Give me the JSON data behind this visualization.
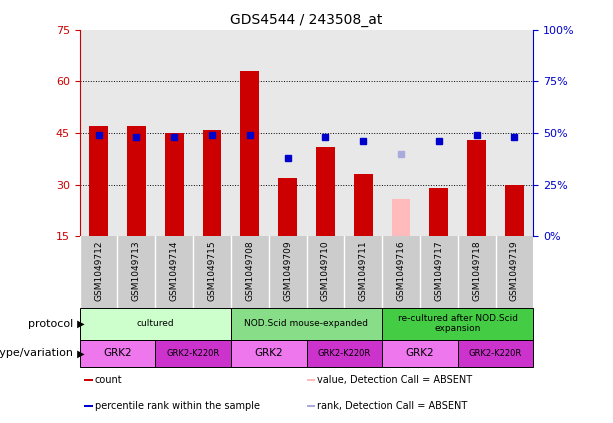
{
  "title": "GDS4544 / 243508_at",
  "samples": [
    "GSM1049712",
    "GSM1049713",
    "GSM1049714",
    "GSM1049715",
    "GSM1049708",
    "GSM1049709",
    "GSM1049710",
    "GSM1049711",
    "GSM1049716",
    "GSM1049717",
    "GSM1049718",
    "GSM1049719"
  ],
  "bar_values": [
    47,
    47,
    45,
    46,
    63,
    32,
    41,
    33,
    null,
    29,
    43,
    30
  ],
  "bar_color": "#cc0000",
  "absent_bar_color": "#ffbbbb",
  "absent_dot_color": "#aaaadd",
  "dot_color": "#0000cc",
  "absent_bar": [
    null,
    null,
    null,
    null,
    null,
    null,
    null,
    null,
    26,
    null,
    null,
    null
  ],
  "dot_values": [
    49,
    48,
    48,
    49,
    49,
    38,
    48,
    46,
    null,
    46,
    49,
    48
  ],
  "absent_dot": [
    null,
    null,
    null,
    null,
    null,
    null,
    null,
    null,
    40,
    null,
    null,
    null
  ],
  "ylim_left": [
    15,
    75
  ],
  "y_ticks_left": [
    15,
    30,
    45,
    60,
    75
  ],
  "y_ticks_right": [
    0,
    25,
    50,
    75,
    100
  ],
  "y_right_color": "#0000cc",
  "y_left_color": "#cc0000",
  "protocols": [
    {
      "label": "cultured",
      "start": 0,
      "end": 4,
      "color": "#ccffcc"
    },
    {
      "label": "NOD.Scid mouse-expanded",
      "start": 4,
      "end": 8,
      "color": "#88dd88"
    },
    {
      "label": "re-cultured after NOD.Scid\nexpansion",
      "start": 8,
      "end": 12,
      "color": "#44cc44"
    }
  ],
  "genotypes": [
    {
      "label": "GRK2",
      "start": 0,
      "end": 2,
      "color": "#ee77ee"
    },
    {
      "label": "GRK2-K220R",
      "start": 2,
      "end": 4,
      "color": "#cc33cc"
    },
    {
      "label": "GRK2",
      "start": 4,
      "end": 6,
      "color": "#ee77ee"
    },
    {
      "label": "GRK2-K220R",
      "start": 6,
      "end": 8,
      "color": "#cc33cc"
    },
    {
      "label": "GRK2",
      "start": 8,
      "end": 10,
      "color": "#ee77ee"
    },
    {
      "label": "GRK2-K220R",
      "start": 10,
      "end": 12,
      "color": "#cc33cc"
    }
  ],
  "legend_items": [
    {
      "label": "count",
      "color": "#cc0000"
    },
    {
      "label": "percentile rank within the sample",
      "color": "#0000cc"
    },
    {
      "label": "value, Detection Call = ABSENT",
      "color": "#ffbbbb"
    },
    {
      "label": "rank, Detection Call = ABSENT",
      "color": "#aaaadd"
    }
  ],
  "protocol_label": "protocol",
  "genotype_label": "genotype/variation",
  "bar_width": 0.5,
  "chart_bg": "#e8e8e8",
  "sample_band_bg": "#cccccc"
}
